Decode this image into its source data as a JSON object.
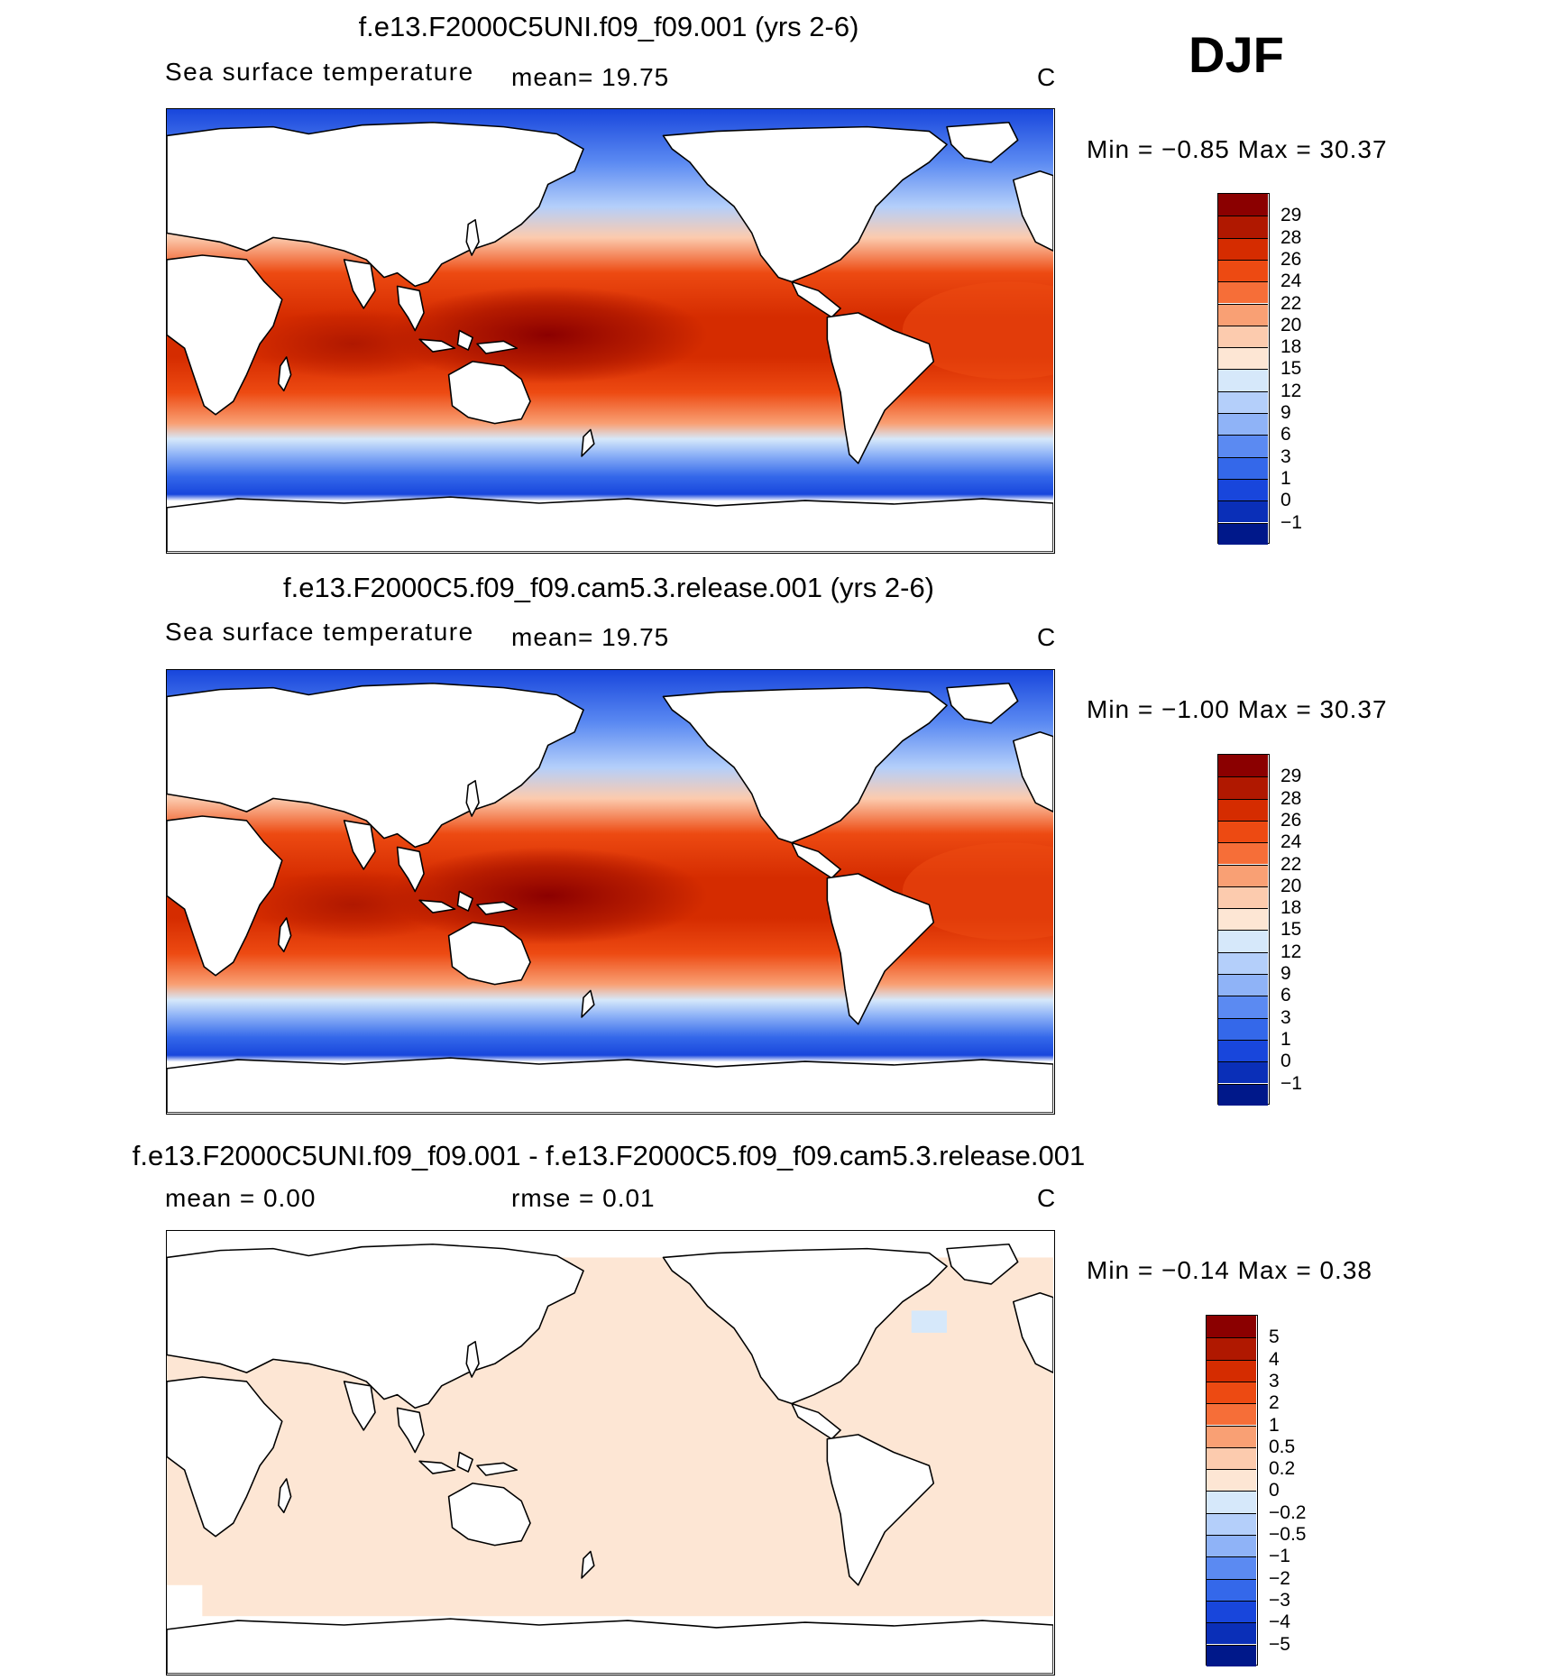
{
  "season": "DJF",
  "panels": [
    {
      "title": "f.e13.F2000C5UNI.f09_f09.001 (yrs 2-6)",
      "variable": "Sea surface temperature",
      "stat1": "mean=   19.75",
      "stat2": "",
      "units": "C",
      "minmax": "Min =   −0.85 Max =   30.37",
      "field": "sst"
    },
    {
      "title": "f.e13.F2000C5.f09_f09.cam5.3.release.001 (yrs 2-6)",
      "variable": "Sea surface temperature",
      "stat1": "mean=   19.75",
      "stat2": "",
      "units": "C",
      "minmax": "Min =   −1.00 Max =   30.37",
      "field": "sst"
    },
    {
      "title": "f.e13.F2000C5UNI.f09_f09.001 - f.e13.F2000C5.f09_f09.cam5.3.release.001",
      "variable": "",
      "stat1": "mean =     0.00",
      "stat2": "rmse =     0.01",
      "units": "C",
      "minmax": "Min =   −0.14 Max =    0.38",
      "field": "diff"
    }
  ],
  "colorbars": {
    "sst": {
      "labels": [
        "29",
        "28",
        "26",
        "24",
        "22",
        "20",
        "18",
        "15",
        "12",
        "9",
        "6",
        "3",
        "1",
        "0",
        "−1"
      ],
      "colors": [
        "#8b0000",
        "#b01800",
        "#d52c00",
        "#ed4a12",
        "#f66e38",
        "#f9a074",
        "#fccbae",
        "#fde6d4",
        "#d6e8fa",
        "#b4cffa",
        "#8fb3f7",
        "#5b8af2",
        "#3468ea",
        "#1846dc",
        "#0a2fb8",
        "#00188a"
      ]
    },
    "diff": {
      "labels": [
        "5",
        "4",
        "3",
        "2",
        "1",
        "0.5",
        "0.2",
        "0",
        "−0.2",
        "−0.5",
        "−1",
        "−2",
        "−3",
        "−4",
        "−5"
      ],
      "colors": [
        "#8b0000",
        "#b01800",
        "#d52c00",
        "#ed4a12",
        "#f66e38",
        "#f9a074",
        "#fccbae",
        "#fde6d4",
        "#d6e8fa",
        "#b4cffa",
        "#8fb3f7",
        "#5b8af2",
        "#3468ea",
        "#1846dc",
        "#0a2fb8",
        "#00188a"
      ]
    }
  }
}
